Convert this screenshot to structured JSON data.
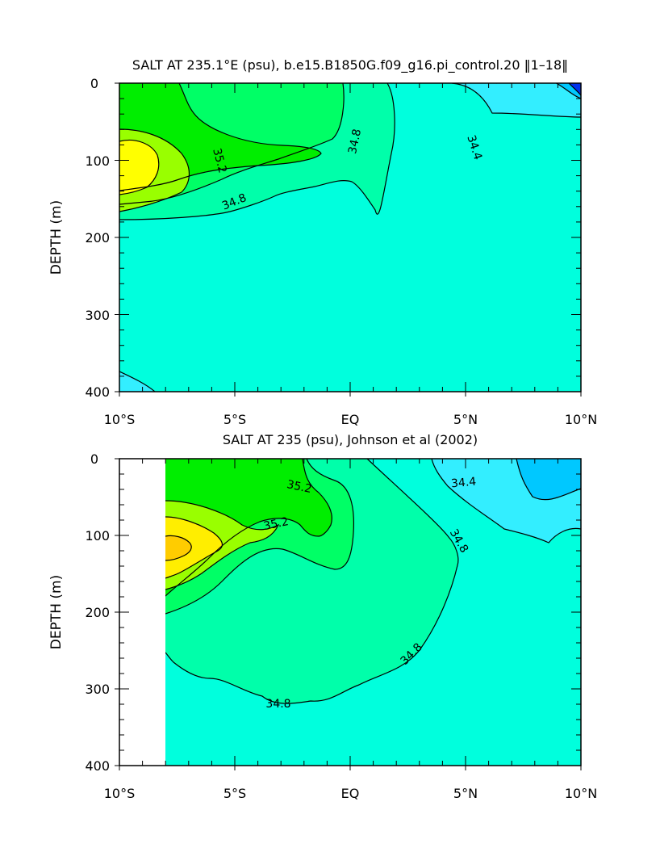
{
  "chart_data": [
    {
      "type": "contour",
      "title": "SALT AT 235.1°E (psu), b.e15.B1850G.f09_g16.pi_control.20 ‖1–18‖",
      "ylabel": "DEPTH (m)",
      "xlabel": "",
      "xlim": [
        -10,
        10
      ],
      "ylim": [
        400,
        0
      ],
      "x_ticks": [
        -10,
        -5,
        0,
        5,
        10
      ],
      "x_tick_labels": [
        "10°S",
        "5°S",
        "EQ",
        "5°N",
        "10°N"
      ],
      "y_ticks": [
        0,
        100,
        200,
        300,
        400
      ],
      "y_tick_labels": [
        "0",
        "100",
        "200",
        "300",
        "400"
      ],
      "contour_interval": 0.1,
      "contour_labels": [
        "35.2",
        "34.8",
        "34.8",
        "34.4"
      ],
      "colors": {
        "s34_0": "#0033ee",
        "s34_1": "#0066ff",
        "s34_2": "#0099ff",
        "s34_3": "#00c8ff",
        "s34_4": "#33eeff",
        "s34_6": "#00ffdd",
        "s34_8": "#00ffaa",
        "s35_0": "#00ff66",
        "s35_2": "#00ee00",
        "s35_4": "#99ff00",
        "s35_6": "#ffff00"
      }
    },
    {
      "type": "contour",
      "title": "SALT AT 235 (psu), Johnson et al (2002)",
      "ylabel": "DEPTH (m)",
      "xlabel": "",
      "xlim": [
        -10,
        10
      ],
      "ylim": [
        400,
        0
      ],
      "x_ticks": [
        -10,
        -5,
        0,
        5,
        10
      ],
      "x_tick_labels": [
        "10°S",
        "5°S",
        "EQ",
        "5°N",
        "10°N"
      ],
      "y_ticks": [
        0,
        100,
        200,
        300,
        400
      ],
      "y_tick_labels": [
        "0",
        "100",
        "200",
        "300",
        "400"
      ],
      "data_x_start": -8,
      "contour_labels": [
        "35.2",
        "35.2",
        "34.4",
        "34.8",
        "34.8",
        "34.8"
      ],
      "colors": {
        "s34_4": "#33eeff",
        "s34_6": "#00ffdd",
        "s34_8": "#00ffaa",
        "s35_0": "#00ff66",
        "s35_2": "#00ee00",
        "s35_4": "#99ff00",
        "s35_6": "#ffee00",
        "s35_8": "#ffcc00"
      }
    }
  ]
}
